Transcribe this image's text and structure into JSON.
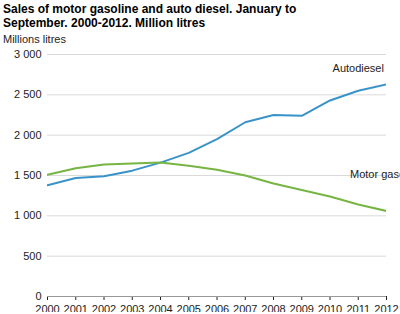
{
  "chart_data": {
    "type": "line",
    "title": "Sales of motor gasoline and auto diesel. January to September. 2000-2012. Million litres",
    "y_label": "Millions litres",
    "x": [
      2000,
      2001,
      2002,
      2003,
      2004,
      2005,
      2006,
      2007,
      2008,
      2009,
      2010,
      2011,
      2012
    ],
    "series": [
      {
        "name": "Autodiesel",
        "color": "#3a93c8",
        "values": [
          1380,
          1470,
          1490,
          1560,
          1660,
          1780,
          1950,
          2160,
          2250,
          2240,
          2430,
          2550,
          2630
        ]
      },
      {
        "name": "Motor gasoline",
        "color": "#77b543",
        "values": [
          1510,
          1590,
          1635,
          1650,
          1660,
          1620,
          1570,
          1500,
          1400,
          1320,
          1240,
          1140,
          1060
        ]
      }
    ],
    "xlim": [
      2000,
      2012
    ],
    "xticks": [
      2000,
      2001,
      2002,
      2003,
      2004,
      2005,
      2006,
      2007,
      2008,
      2009,
      2010,
      2011,
      2012
    ],
    "ylim": [
      0,
      3000
    ],
    "yticks": [
      0,
      500,
      {
        "value": 1000,
        "label": "1 000"
      },
      {
        "value": 1500,
        "label": "1 500"
      },
      {
        "value": 2000,
        "label": "2 000"
      },
      {
        "value": 2500,
        "label": "2 500"
      },
      {
        "value": 3000,
        "label": "3 000"
      }
    ],
    "grid": true
  }
}
